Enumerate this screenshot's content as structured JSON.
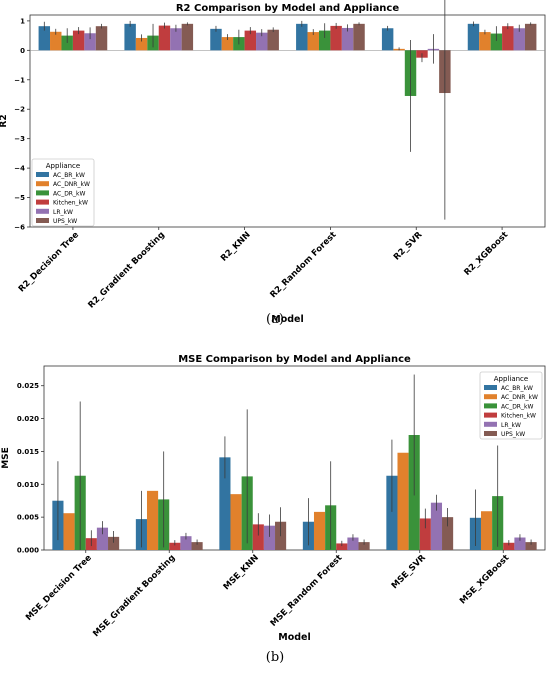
{
  "chart_data": [
    {
      "type": "bar",
      "title": "R2 Comparison by Model and Appliance",
      "xlabel": "Model",
      "ylabel": "R2",
      "categories": [
        "R2_Decision Tree",
        "R2_Gradient Boosting",
        "R2_KNN",
        "R2_Random Forest",
        "R2_SVR",
        "R2_XGBoost"
      ],
      "yticks": [
        "1",
        "0",
        "−1",
        "−2",
        "−3",
        "−4",
        "−5",
        "−6"
      ],
      "ylim": [
        -6.0,
        1.2
      ],
      "legend": {
        "title": "Appliance",
        "position": "center-left"
      },
      "series": [
        {
          "name": "AC_BR_kW",
          "color": "#3274a1",
          "values": [
            0.82,
            0.9,
            0.73,
            0.9,
            0.75,
            0.9
          ],
          "err": [
            0.15,
            0.1,
            0.1,
            0.1,
            0.08,
            0.08
          ]
        },
        {
          "name": "AC_DNR_kW",
          "color": "#e1812c",
          "values": [
            0.63,
            0.42,
            0.45,
            0.62,
            0.05,
            0.62
          ],
          "err": [
            0.1,
            0.12,
            0.1,
            0.1,
            0.05,
            0.08
          ]
        },
        {
          "name": "AC_DR_kW",
          "color": "#3a923a",
          "values": [
            0.5,
            0.5,
            0.45,
            0.67,
            -1.55,
            0.57
          ],
          "err": [
            0.25,
            0.4,
            0.25,
            0.25,
            1.9,
            0.25
          ]
        },
        {
          "name": "Kitchen_kW",
          "color": "#c03d3e",
          "values": [
            0.67,
            0.84,
            0.67,
            0.83,
            -0.25,
            0.82
          ],
          "err": [
            0.12,
            0.1,
            0.12,
            0.1,
            0.15,
            0.1
          ]
        },
        {
          "name": "LR_kW",
          "color": "#9372b2",
          "values": [
            0.58,
            0.75,
            0.6,
            0.76,
            0.05,
            0.75
          ],
          "err": [
            0.2,
            0.12,
            0.12,
            0.12,
            0.5,
            0.12
          ]
        },
        {
          "name": "UPS_kW",
          "color": "#845b53",
          "values": [
            0.82,
            0.9,
            0.7,
            0.9,
            -1.45,
            0.9
          ],
          "err": [
            0.08,
            0.05,
            0.08,
            0.05,
            4.3,
            0.05
          ]
        }
      ],
      "caption": "(a)"
    },
    {
      "type": "bar",
      "title": "MSE Comparison by Model and Appliance",
      "xlabel": "Model",
      "ylabel": "MSE",
      "categories": [
        "MSE_Decision Tree",
        "MSE_Gradient Boosting",
        "MSE_KNN",
        "MSE_Random Forest",
        "MSE_SVR",
        "MSE_XGBoost"
      ],
      "yticks": [
        "0.025",
        "0.020",
        "0.015",
        "0.010",
        "0.005",
        "0.000"
      ],
      "ylim": [
        0.0,
        0.028
      ],
      "legend": {
        "title": "Appliance",
        "position": "top-right"
      },
      "series": [
        {
          "name": "AC_BR_kW",
          "color": "#3274a1",
          "values": [
            0.0075,
            0.0047,
            0.0141,
            0.0043,
            0.0113,
            0.0049
          ],
          "err": [
            0.006,
            0.0043,
            0.0032,
            0.0036,
            0.0055,
            0.0043
          ]
        },
        {
          "name": "AC_DNR_kW",
          "color": "#e1812c",
          "values": [
            0.0056,
            0.009,
            0.0085,
            0.0058,
            0.0148,
            0.0059
          ],
          "err": [
            0.0,
            0.0,
            0.0,
            0.0,
            0.0,
            0.0
          ]
        },
        {
          "name": "AC_DR_kW",
          "color": "#3a923a",
          "values": [
            0.0113,
            0.0077,
            0.0112,
            0.0068,
            0.0175,
            0.0082
          ],
          "err": [
            0.0113,
            0.0073,
            0.0102,
            0.0067,
            0.0092,
            0.0077
          ]
        },
        {
          "name": "Kitchen_kW",
          "color": "#c03d3e",
          "values": [
            0.0018,
            0.0011,
            0.0039,
            0.001,
            0.0048,
            0.0011
          ],
          "err": [
            0.0012,
            0.0004,
            0.0017,
            0.0004,
            0.0015,
            0.0004
          ]
        },
        {
          "name": "LR_kW",
          "color": "#9372b2",
          "values": [
            0.0034,
            0.0021,
            0.0037,
            0.0019,
            0.0072,
            0.0019
          ],
          "err": [
            0.001,
            0.0005,
            0.0017,
            0.0005,
            0.0012,
            0.0005
          ]
        },
        {
          "name": "UPS_kW",
          "color": "#845b53",
          "values": [
            0.002,
            0.0012,
            0.0043,
            0.0012,
            0.005,
            0.0012
          ],
          "err": [
            0.0009,
            0.0004,
            0.0022,
            0.0004,
            0.0014,
            0.0004
          ]
        }
      ],
      "caption": "(b)"
    }
  ]
}
